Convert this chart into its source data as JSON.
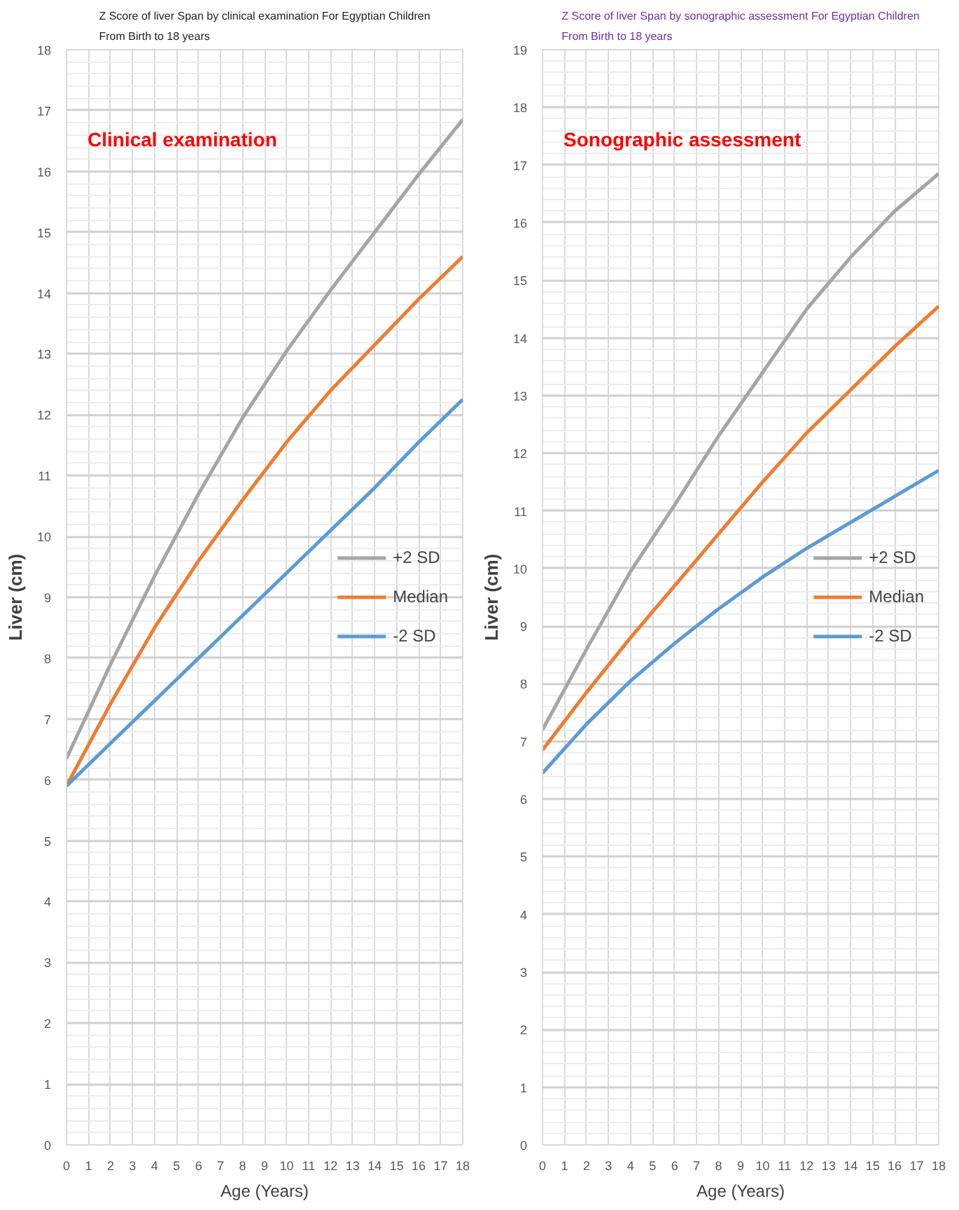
{
  "chart_data": [
    {
      "type": "line",
      "title": "Z Score of liver Span by clinical examination For Egyptian Children\nFrom Birth to 18 years",
      "xlabel": "Age (Years)",
      "ylabel": "Liver (cm)",
      "annotations": [
        "Clinical examination"
      ],
      "x": [
        0,
        2,
        4,
        6,
        8,
        10,
        12,
        14,
        16,
        18
      ],
      "series": [
        {
          "name": "+2 SD",
          "color": "#a5a5a5",
          "values": [
            6.35,
            7.9,
            9.35,
            10.7,
            11.95,
            13.05,
            14.05,
            15.0,
            15.95,
            16.85
          ]
        },
        {
          "name": "Median",
          "color": "#ed7d31",
          "values": [
            5.9,
            7.25,
            8.5,
            9.6,
            10.6,
            11.55,
            12.4,
            13.15,
            13.9,
            14.6
          ]
        },
        {
          "name": "-2 SD",
          "color": "#5b9bd5",
          "values": [
            5.9,
            6.6,
            7.3,
            8.0,
            8.7,
            9.4,
            10.1,
            10.8,
            11.55,
            12.25
          ]
        }
      ],
      "xlim": [
        0,
        18
      ],
      "xticks": [
        0,
        1,
        2,
        3,
        4,
        5,
        6,
        7,
        8,
        9,
        10,
        11,
        12,
        13,
        14,
        15,
        16,
        17,
        18
      ],
      "ylim": [
        0,
        18
      ],
      "yticks": [
        0,
        1,
        2,
        3,
        4,
        5,
        6,
        7,
        8,
        9,
        10,
        11,
        12,
        13,
        14,
        15,
        16,
        17,
        18
      ],
      "grid": true,
      "legend": "right",
      "marker": "none",
      "line_style": "solid"
    },
    {
      "type": "line",
      "title": "Z Score of liver Span by sonographic assessment For Egyptian Children\nFrom Birth to 18 years",
      "xlabel": "Age (Years)",
      "ylabel": "Liver (cm)",
      "annotations": [
        "Sonographic assessment"
      ],
      "x": [
        0,
        2,
        4,
        6,
        8,
        10,
        12,
        14,
        16,
        18
      ],
      "series": [
        {
          "name": "+2 SD",
          "color": "#a5a5a5",
          "values": [
            7.2,
            8.6,
            9.95,
            11.1,
            12.3,
            13.4,
            14.5,
            15.4,
            16.2,
            16.85
          ]
        },
        {
          "name": "Median",
          "color": "#ed7d31",
          "values": [
            6.85,
            7.85,
            8.8,
            9.7,
            10.6,
            11.5,
            12.35,
            13.1,
            13.85,
            14.55
          ]
        },
        {
          "name": "-2 SD",
          "color": "#5b9bd5",
          "values": [
            6.45,
            7.3,
            8.05,
            8.7,
            9.3,
            9.85,
            10.35,
            10.8,
            11.25,
            11.7
          ]
        }
      ],
      "xlim": [
        0,
        18
      ],
      "xticks": [
        0,
        1,
        2,
        3,
        4,
        5,
        6,
        7,
        8,
        9,
        10,
        11,
        12,
        13,
        14,
        15,
        16,
        17,
        18
      ],
      "ylim": [
        0,
        19
      ],
      "yticks": [
        0,
        1,
        2,
        3,
        4,
        5,
        6,
        7,
        8,
        9,
        10,
        11,
        12,
        13,
        14,
        15,
        16,
        17,
        18,
        19
      ],
      "grid": true,
      "legend": "right",
      "marker": "none",
      "line_style": "solid"
    }
  ]
}
